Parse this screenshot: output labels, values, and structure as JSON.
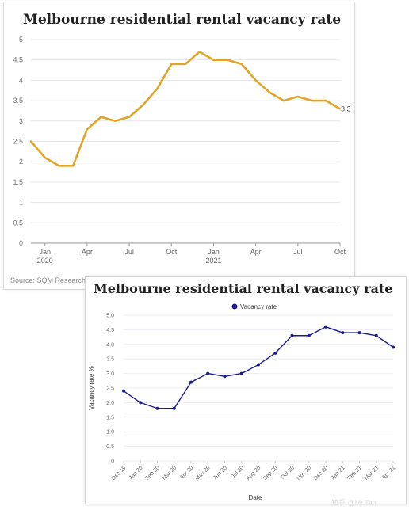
{
  "chart_data": [
    {
      "type": "line",
      "title": "Melbourne residential rental vacancy rate",
      "source": "Source: SQM Research",
      "x_tick_labels": [
        {
          "label": "Jan",
          "sub": "2020"
        },
        {
          "label": "Apr",
          "sub": ""
        },
        {
          "label": "Jul",
          "sub": ""
        },
        {
          "label": "Oct",
          "sub": ""
        },
        {
          "label": "Jan",
          "sub": "2021"
        },
        {
          "label": "Apr",
          "sub": ""
        },
        {
          "label": "Jul",
          "sub": ""
        },
        {
          "label": "Oct",
          "sub": ""
        }
      ],
      "y_ticks": [
        "0",
        "0.5",
        "1",
        "1.5",
        "2",
        "2.5",
        "3",
        "3.5",
        "4",
        "4.5",
        "5"
      ],
      "ylim": [
        0,
        5
      ],
      "series": [
        {
          "values": [
            2.5,
            2.1,
            1.9,
            1.9,
            2.8,
            3.1,
            3.0,
            3.1,
            3.4,
            3.8,
            4.4,
            4.4,
            4.7,
            4.5,
            4.5,
            4.4,
            4.0,
            3.7,
            3.5,
            3.6,
            3.5,
            3.5,
            3.3
          ],
          "end_label": "3.3",
          "color": "#e0a526"
        }
      ],
      "grid": true
    },
    {
      "type": "line",
      "title": "Melbourne residential rental vacancy rate",
      "xlabel": "Date",
      "ylabel": "Vacancy rate %",
      "categories": [
        "Dec 19",
        "Jan 20",
        "Feb 20",
        "Mar 20",
        "Apr 20",
        "May 20",
        "Jun 20",
        "Jul 20",
        "Aug 20",
        "Sep 20",
        "Oct 20",
        "Nov 20",
        "Dec 20",
        "Jan 21",
        "Feb 21",
        "Mar 21",
        "Apr 21"
      ],
      "y_ticks": [
        "0",
        "0.5",
        "1.0",
        "1.5",
        "2.0",
        "2.5",
        "3.0",
        "3.5",
        "4.0",
        "4.5",
        "5.0"
      ],
      "ylim": [
        0,
        5
      ],
      "series": [
        {
          "name": "Vacancy rate",
          "values": [
            2.4,
            2.0,
            1.8,
            1.8,
            2.7,
            3.0,
            2.9,
            3.0,
            3.3,
            3.7,
            4.3,
            4.3,
            4.6,
            4.4,
            4.4,
            4.3,
            3.9
          ],
          "color": "#1a1a8c"
        }
      ],
      "legend": "top-center",
      "grid": true
    }
  ],
  "watermark": "知乎 @Mr.Tan"
}
